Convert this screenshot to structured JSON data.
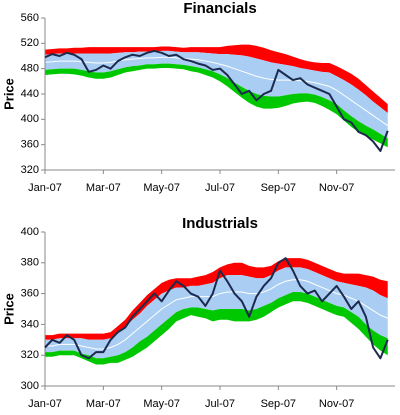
{
  "chart_data": [
    {
      "type": "line",
      "title": "Financials",
      "ylabel": "Price",
      "categories": [
        "Jan-07",
        null,
        null,
        null,
        null,
        null,
        null,
        null,
        "Mar-07",
        null,
        null,
        null,
        null,
        null,
        null,
        null,
        "May-07",
        null,
        null,
        null,
        null,
        null,
        null,
        null,
        "Jul-07",
        null,
        null,
        null,
        null,
        null,
        null,
        null,
        "Sep-07",
        null,
        null,
        null,
        null,
        null,
        null,
        null,
        "Nov-07",
        null,
        null,
        null,
        null,
        null,
        null,
        null
      ],
      "ylim": [
        320,
        560
      ],
      "yticks": [
        320,
        360,
        400,
        440,
        480,
        520,
        560
      ],
      "series": [
        {
          "color": "#1c2a4e",
          "values": [
            498,
            503,
            500,
            505,
            502,
            495,
            475,
            478,
            485,
            480,
            492,
            498,
            502,
            500,
            505,
            508,
            505,
            500,
            502,
            495,
            492,
            488,
            485,
            478,
            480,
            470,
            455,
            440,
            445,
            430,
            440,
            445,
            478,
            470,
            462,
            465,
            455,
            450,
            445,
            440,
            420,
            400,
            395,
            380,
            375,
            365,
            350,
            382
          ]
        }
      ],
      "bands": {
        "colors": [
          "#ff0000",
          "#a9cdf3",
          "#00c800"
        ],
        "center_color": "#ffffff",
        "center": [
          490,
          491,
          492,
          492,
          492,
          491,
          490,
          489,
          489,
          490,
          492,
          494,
          495,
          496,
          497,
          497,
          498,
          498,
          497,
          496,
          495,
          494,
          492,
          490,
          487,
          484,
          480,
          476,
          472,
          468,
          465,
          463,
          462,
          462,
          462,
          461,
          460,
          458,
          455,
          452,
          446,
          438,
          430,
          422,
          414,
          406,
          398,
          390
        ],
        "inner": [
          12,
          12,
          12,
          12,
          12,
          13,
          14,
          15,
          15,
          14,
          13,
          12,
          11,
          11,
          10,
          10,
          10,
          10,
          10,
          10,
          11,
          12,
          13,
          14,
          16,
          19,
          22,
          25,
          27,
          28,
          28,
          27,
          26,
          24,
          22,
          20,
          19,
          19,
          20,
          22,
          22,
          24,
          25,
          25,
          24,
          22,
          21,
          20
        ],
        "outer": [
          20,
          20,
          20,
          20,
          21,
          22,
          24,
          25,
          25,
          24,
          22,
          20,
          19,
          18,
          17,
          17,
          17,
          17,
          17,
          17,
          19,
          20,
          22,
          24,
          27,
          32,
          37,
          42,
          46,
          48,
          48,
          46,
          44,
          41,
          37,
          34,
          32,
          32,
          34,
          37,
          38,
          40,
          42,
          42,
          40,
          38,
          36,
          34
        ]
      }
    },
    {
      "type": "line",
      "title": "Industrials",
      "ylabel": "Price",
      "categories": [
        "Jan-07",
        null,
        null,
        null,
        null,
        null,
        null,
        null,
        "Mar-07",
        null,
        null,
        null,
        null,
        null,
        null,
        null,
        "May-07",
        null,
        null,
        null,
        null,
        null,
        null,
        null,
        "Jul-07",
        null,
        null,
        null,
        null,
        null,
        null,
        null,
        "Sep-07",
        null,
        null,
        null,
        null,
        null,
        null,
        null,
        "Nov-07",
        null,
        null,
        null,
        null,
        null,
        null,
        null
      ],
      "ylim": [
        300,
        400
      ],
      "yticks": [
        300,
        320,
        340,
        360,
        380,
        400
      ],
      "series": [
        {
          "color": "#1c2a4e",
          "values": [
            325,
            330,
            328,
            333,
            330,
            320,
            318,
            322,
            322,
            330,
            335,
            338,
            345,
            350,
            355,
            360,
            355,
            362,
            368,
            365,
            360,
            358,
            352,
            360,
            375,
            368,
            360,
            355,
            345,
            358,
            365,
            370,
            380,
            383,
            375,
            365,
            360,
            362,
            355,
            360,
            365,
            358,
            350,
            355,
            345,
            325,
            318,
            330
          ]
        }
      ],
      "bands": {
        "colors": [
          "#ff0000",
          "#a9cdf3",
          "#00c800"
        ],
        "center_color": "#ffffff",
        "center": [
          326,
          326,
          327,
          327,
          327,
          326,
          325,
          324,
          324,
          325,
          327,
          330,
          334,
          338,
          342,
          346,
          350,
          353,
          356,
          357,
          358,
          358,
          358,
          358,
          360,
          361,
          361,
          361,
          360,
          360,
          361,
          363,
          366,
          368,
          369,
          369,
          368,
          366,
          364,
          362,
          360,
          359,
          357,
          355,
          352,
          349,
          346,
          344
        ],
        "inner": [
          4,
          4,
          4,
          4,
          4,
          5,
          5,
          6,
          6,
          6,
          7,
          8,
          9,
          9,
          10,
          10,
          10,
          9,
          8,
          7,
          7,
          7,
          8,
          9,
          10,
          11,
          11,
          11,
          11,
          10,
          9,
          9,
          9,
          9,
          8,
          8,
          8,
          8,
          8,
          8,
          8,
          8,
          9,
          10,
          12,
          13,
          13,
          13
        ],
        "outer": [
          7,
          7,
          7,
          7,
          7,
          8,
          9,
          10,
          10,
          10,
          12,
          13,
          15,
          16,
          17,
          17,
          17,
          16,
          14,
          13,
          12,
          13,
          14,
          16,
          17,
          18,
          19,
          19,
          18,
          17,
          16,
          15,
          15,
          15,
          14,
          14,
          14,
          14,
          14,
          14,
          14,
          14,
          16,
          18,
          20,
          22,
          23,
          24
        ]
      }
    }
  ]
}
